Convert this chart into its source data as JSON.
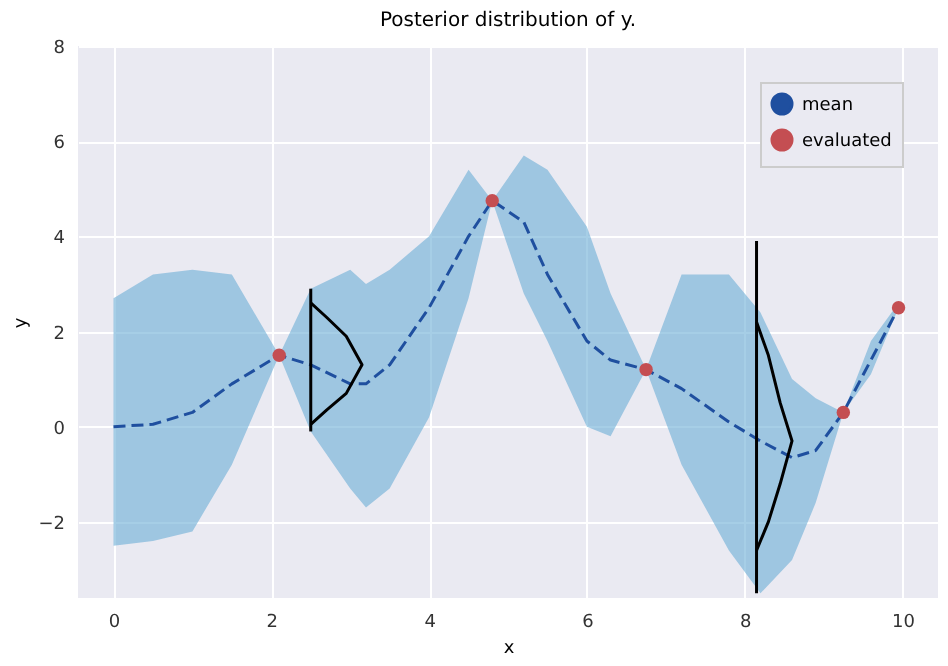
{
  "chart_data": {
    "type": "line",
    "title": "Posterior distribution of y.",
    "xlabel": "x",
    "ylabel": "y",
    "xlim": [
      -0.45,
      10.45
    ],
    "ylim": [
      -3.6,
      8
    ],
    "xticks": [
      0,
      2,
      4,
      6,
      8,
      10
    ],
    "yticks": [
      -2,
      0,
      2,
      4,
      6,
      8
    ],
    "grid": true,
    "legend": "top right",
    "series": [
      {
        "name": "mean",
        "color": "#1f4f9f",
        "line_style": "dashed",
        "x": [
          0,
          0.5,
          1,
          1.5,
          2.1,
          2.5,
          3,
          3.2,
          3.5,
          4,
          4.5,
          4.8,
          5.2,
          5.5,
          6,
          6.3,
          6.75,
          7.2,
          7.8,
          8.2,
          8.6,
          8.9,
          9.25,
          9.6,
          9.95
        ],
        "values": [
          0,
          0.05,
          0.3,
          0.9,
          1.5,
          1.3,
          0.9,
          0.9,
          1.3,
          2.5,
          4.0,
          4.75,
          4.3,
          3.2,
          1.8,
          1.4,
          1.2,
          0.8,
          0.1,
          -0.3,
          -0.65,
          -0.5,
          0.3,
          1.4,
          2.5
        ],
        "lower": [
          -2.5,
          -2.4,
          -2.2,
          -0.8,
          1.5,
          -0.1,
          -1.3,
          -1.7,
          -1.3,
          0.2,
          2.7,
          4.75,
          2.8,
          1.8,
          0.0,
          -0.2,
          1.2,
          -0.8,
          -2.6,
          -3.5,
          -2.8,
          -1.6,
          0.3,
          1.1,
          2.5
        ],
        "upper": [
          2.7,
          3.2,
          3.3,
          3.2,
          1.5,
          2.9,
          3.3,
          3.0,
          3.3,
          4.0,
          5.4,
          4.75,
          5.7,
          5.4,
          4.2,
          2.8,
          1.2,
          3.2,
          3.2,
          2.4,
          1.0,
          0.6,
          0.3,
          1.8,
          2.6
        ]
      },
      {
        "name": "evaluated",
        "type": "scatter",
        "marker": "circle",
        "color": "#c44e52",
        "x": [
          2.1,
          4.8,
          6.75,
          9.25,
          9.95
        ],
        "values": [
          1.5,
          4.75,
          1.2,
          0.3,
          2.5
        ]
      },
      {
        "type": "line",
        "color": "#000000",
        "x": [
          2.5,
          2.5
        ],
        "values": [
          -0.1,
          2.9
        ]
      },
      {
        "type": "line",
        "color": "#000000",
        "x": [
          2.5,
          2.7,
          2.95,
          3.15,
          2.95,
          2.7,
          2.5
        ],
        "values": [
          2.6,
          2.3,
          1.9,
          1.3,
          0.7,
          0.35,
          0.05
        ]
      },
      {
        "type": "line",
        "color": "#000000",
        "x": [
          8.15,
          8.15
        ],
        "values": [
          -3.5,
          3.9
        ]
      },
      {
        "type": "line",
        "color": "#000000",
        "x": [
          8.15,
          8.3,
          8.45,
          8.6,
          8.45,
          8.3,
          8.15
        ],
        "values": [
          2.2,
          1.5,
          0.5,
          -0.3,
          -1.2,
          -2.0,
          -2.6
        ]
      }
    ]
  }
}
